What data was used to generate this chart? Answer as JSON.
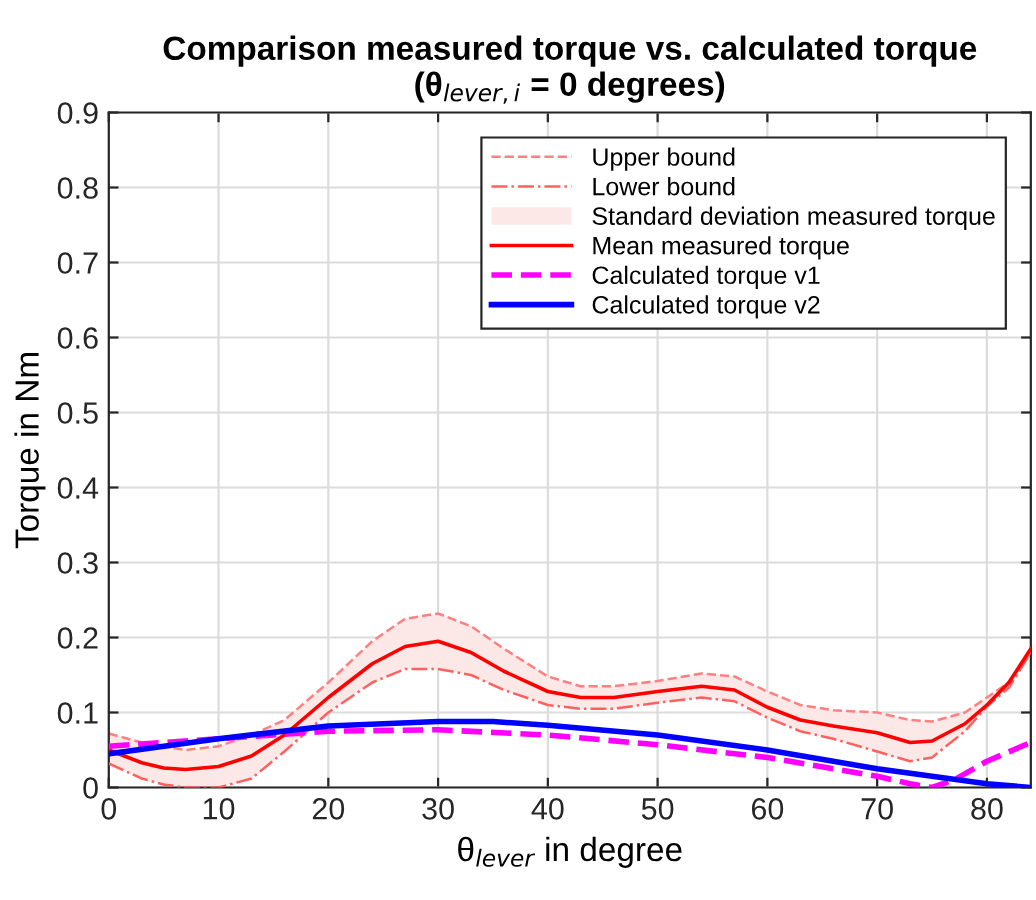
{
  "chart_data": {
    "type": "line",
    "title": "Comparison measured torque vs. calculated torque\n(θ$_{lever,i}$ = 0 degrees)",
    "xlabel": "θ$_{lever}$ in degree",
    "ylabel": "Torque in Nm",
    "xlim": [
      0,
      84
    ],
    "xticks": [
      0,
      10,
      20,
      30,
      40,
      50,
      60,
      70,
      80
    ],
    "ylim": [
      0,
      0.9
    ],
    "yticks": [
      0,
      0.1,
      0.2,
      0.3,
      0.4,
      0.5,
      0.6,
      0.7,
      0.8,
      0.9
    ],
    "grid": true,
    "legend": "top right",
    "series": [
      {
        "name": "Upper bound",
        "type": "line",
        "line_style": "dashed",
        "color": "#ff8080",
        "x": [
          0,
          3,
          5,
          7,
          10,
          13,
          16,
          20,
          24,
          27,
          30,
          33,
          36,
          40,
          43,
          46,
          50,
          54,
          57,
          60,
          63,
          66,
          70,
          73,
          75,
          78,
          80,
          82,
          84
        ],
        "values": [
          0.072,
          0.06,
          0.055,
          0.05,
          0.055,
          0.07,
          0.09,
          0.14,
          0.195,
          0.225,
          0.232,
          0.215,
          0.185,
          0.148,
          0.135,
          0.135,
          0.142,
          0.152,
          0.148,
          0.128,
          0.11,
          0.103,
          0.1,
          0.09,
          0.088,
          0.1,
          0.12,
          0.14,
          0.18
        ]
      },
      {
        "name": "Lower bound",
        "type": "line",
        "line_style": "dashdot",
        "color": "#ff6060",
        "x": [
          0,
          3,
          5,
          7,
          10,
          13,
          16,
          20,
          24,
          27,
          30,
          33,
          36,
          40,
          43,
          46,
          50,
          54,
          57,
          60,
          63,
          66,
          70,
          73,
          75,
          78,
          80,
          82,
          84
        ],
        "values": [
          0.032,
          0.012,
          0.004,
          0,
          0,
          0.012,
          0.048,
          0.1,
          0.14,
          0.158,
          0.158,
          0.15,
          0.13,
          0.11,
          0.105,
          0.105,
          0.113,
          0.12,
          0.115,
          0.093,
          0.075,
          0.065,
          0.048,
          0.035,
          0.04,
          0.075,
          0.108,
          0.133,
          0.18
        ]
      },
      {
        "name": "Standard deviation measured torque",
        "type": "area",
        "color": "#fde8e8"
      },
      {
        "name": "Mean measured torque",
        "type": "line",
        "line_style": "solid",
        "color": "#ff0000",
        "x": [
          0,
          3,
          5,
          7,
          10,
          13,
          16,
          20,
          24,
          27,
          30,
          33,
          36,
          40,
          43,
          46,
          50,
          54,
          57,
          60,
          63,
          66,
          70,
          73,
          75,
          78,
          80,
          82,
          84
        ],
        "values": [
          0.05,
          0.033,
          0.026,
          0.024,
          0.028,
          0.042,
          0.07,
          0.12,
          0.165,
          0.188,
          0.195,
          0.18,
          0.155,
          0.128,
          0.12,
          0.12,
          0.128,
          0.135,
          0.13,
          0.107,
          0.09,
          0.082,
          0.073,
          0.06,
          0.062,
          0.085,
          0.11,
          0.14,
          0.185
        ],
        "lower": [
          0.032,
          0.012,
          0.004,
          0,
          0,
          0.012,
          0.048,
          0.1,
          0.14,
          0.158,
          0.158,
          0.15,
          0.13,
          0.11,
          0.105,
          0.105,
          0.113,
          0.12,
          0.115,
          0.093,
          0.075,
          0.065,
          0.048,
          0.035,
          0.04,
          0.075,
          0.108,
          0.133,
          0.18
        ],
        "upper": [
          0.072,
          0.06,
          0.055,
          0.05,
          0.055,
          0.07,
          0.09,
          0.14,
          0.195,
          0.225,
          0.232,
          0.215,
          0.185,
          0.148,
          0.135,
          0.135,
          0.142,
          0.152,
          0.148,
          0.128,
          0.11,
          0.103,
          0.1,
          0.09,
          0.088,
          0.1,
          0.12,
          0.14,
          0.18
        ]
      },
      {
        "name": "Calculated torque v1",
        "line_style": "dashed",
        "color": "#ff00ff",
        "x": [
          0,
          10,
          20,
          30,
          40,
          50,
          60,
          70,
          73,
          75,
          77,
          80,
          84
        ],
        "values": [
          0.055,
          0.065,
          0.075,
          0.077,
          0.07,
          0.057,
          0.04,
          0.015,
          0.005,
          0,
          0.01,
          0.035,
          0.06
        ]
      },
      {
        "name": "Calculated torque v2",
        "line_style": "solid",
        "color": "#0000ff",
        "x": [
          0,
          10,
          20,
          30,
          35,
          40,
          50,
          60,
          70,
          75,
          80,
          84
        ],
        "values": [
          0.045,
          0.065,
          0.082,
          0.088,
          0.088,
          0.083,
          0.07,
          0.05,
          0.025,
          0.015,
          0.005,
          0
        ]
      }
    ]
  }
}
